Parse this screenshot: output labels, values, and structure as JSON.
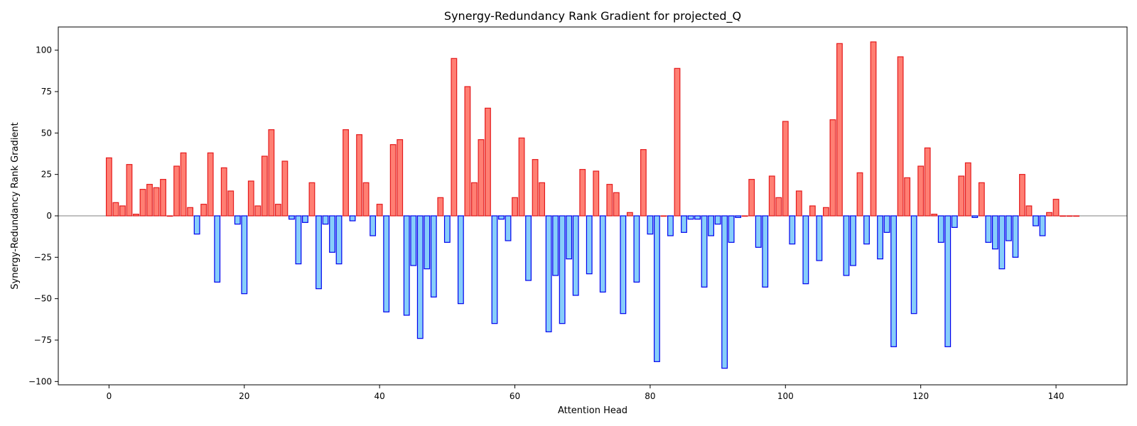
{
  "chart_data": {
    "type": "bar",
    "title": "Synergy-Redundancy Rank Gradient for projected_Q",
    "xlabel": "Attention Head",
    "ylabel": "Synergy-Redundancy Rank Gradient",
    "xlim": [
      -7.5,
      150.5
    ],
    "ylim": [
      -102,
      114
    ],
    "xticks": [
      0,
      20,
      40,
      60,
      80,
      100,
      120,
      140
    ],
    "yticks": [
      -100,
      -75,
      -50,
      -25,
      0,
      25,
      50,
      75,
      100
    ],
    "grid": false,
    "colors": {
      "positive_fill": "#ff7f73",
      "positive_edge": "#e41a1c",
      "negative_fill": "#87cefa",
      "negative_edge": "#0000ee",
      "zero_line": "#808080"
    },
    "x": [
      0,
      1,
      2,
      3,
      4,
      5,
      6,
      7,
      8,
      9,
      10,
      11,
      12,
      13,
      14,
      15,
      16,
      17,
      18,
      19,
      20,
      21,
      22,
      23,
      24,
      25,
      26,
      27,
      28,
      29,
      30,
      31,
      32,
      33,
      34,
      35,
      36,
      37,
      38,
      39,
      40,
      41,
      42,
      43,
      44,
      45,
      46,
      47,
      48,
      49,
      50,
      51,
      52,
      53,
      54,
      55,
      56,
      57,
      58,
      59,
      60,
      61,
      62,
      63,
      64,
      65,
      66,
      67,
      68,
      69,
      70,
      71,
      72,
      73,
      74,
      75,
      76,
      77,
      78,
      79,
      80,
      81,
      82,
      83,
      84,
      85,
      86,
      87,
      88,
      89,
      90,
      91,
      92,
      93,
      94,
      95,
      96,
      97,
      98,
      99,
      100,
      101,
      102,
      103,
      104,
      105,
      106,
      107,
      108,
      109,
      110,
      111,
      112,
      113,
      114,
      115,
      116,
      117,
      118,
      119,
      120,
      121,
      122,
      123,
      124,
      125,
      126,
      127,
      128,
      129,
      130,
      131,
      132,
      133,
      134,
      135,
      136,
      137,
      138,
      139,
      140,
      141,
      142,
      143
    ],
    "values": [
      35,
      8,
      6,
      31,
      1,
      16,
      19,
      17,
      22,
      0,
      30,
      38,
      5,
      -11,
      7,
      38,
      -40,
      29,
      15,
      -5,
      -47,
      21,
      6,
      36,
      52,
      7,
      33,
      -2,
      -29,
      -4,
      20,
      -44,
      -5,
      -22,
      -29,
      52,
      -3,
      49,
      20,
      -12,
      7,
      -58,
      43,
      46,
      -60,
      -30,
      -74,
      -32,
      -49,
      11,
      -16,
      95,
      -53,
      78,
      20,
      46,
      65,
      -65,
      -2,
      -15,
      11,
      47,
      -39,
      34,
      20,
      -70,
      -36,
      -65,
      -26,
      -48,
      28,
      -35,
      27,
      -46,
      19,
      14,
      -59,
      2,
      -40,
      40,
      -11,
      -88,
      0,
      -12,
      89,
      -10,
      -2,
      -2,
      -43,
      -12,
      -5,
      -92,
      -16,
      -1,
      0,
      22,
      -19,
      -43,
      24,
      11,
      57,
      -17,
      15,
      -41,
      6,
      -27,
      5,
      58,
      104,
      -36,
      -30,
      26,
      -17,
      105,
      -26,
      -10,
      -79,
      96,
      23,
      -59,
      30,
      41,
      1,
      -16,
      -79,
      -7,
      24,
      32,
      -1,
      20,
      -16,
      -20,
      -32,
      -15,
      -25,
      25,
      6,
      -6,
      -12,
      2,
      10,
      0,
      0,
      0
    ]
  }
}
